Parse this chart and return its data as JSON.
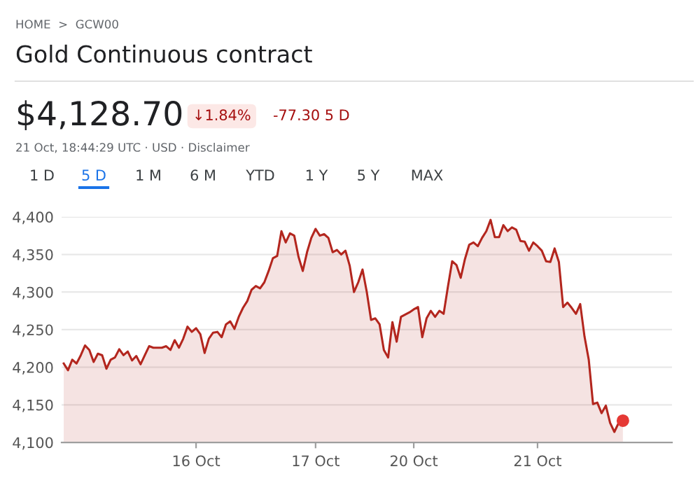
{
  "chart_data": {
    "type": "area",
    "title": "Gold Continuous contract",
    "annotations": [
      "HOME  >  GCW00",
      "$4,128.70",
      "↓1.84%",
      "-77.30 5 D",
      "21 Oct, 18:44:29 UTC · USD · Disclaimer",
      "1 D",
      "5 D",
      "1 M",
      "6 M",
      "YTD",
      "1 Y",
      "5 Y",
      "MAX"
    ],
    "categories": [
      null,
      null,
      null,
      null,
      null,
      null,
      null,
      null,
      null,
      null,
      null,
      null,
      null,
      null,
      null,
      null,
      null,
      null,
      null,
      null,
      null,
      null,
      null,
      null,
      null,
      null,
      null,
      null,
      null,
      null,
      null,
      "16 Oct",
      null,
      null,
      null,
      null,
      null,
      null,
      null,
      null,
      null,
      null,
      null,
      null,
      null,
      null,
      null,
      null,
      null,
      null,
      null,
      null,
      null,
      null,
      null,
      null,
      null,
      null,
      null,
      "17 Oct",
      null,
      null,
      null,
      null,
      null,
      null,
      null,
      null,
      null,
      null,
      null,
      null,
      null,
      null,
      null,
      null,
      null,
      null,
      null,
      null,
      null,
      null,
      "20 Oct",
      null,
      null,
      null,
      null,
      null,
      null,
      null,
      null,
      null,
      null,
      null,
      null,
      null,
      null,
      null,
      null,
      null,
      null,
      null,
      null,
      null,
      null,
      null,
      null,
      null,
      null,
      null,
      null,
      "21 Oct",
      null,
      null,
      null,
      null,
      null,
      null,
      null,
      null,
      null,
      null,
      null,
      null,
      null,
      null,
      null,
      null,
      null,
      null,
      null,
      null,
      null,
      null,
      null,
      null,
      null,
      null,
      null,
      null,
      null,
      null,
      null
    ],
    "ylim": [
      4100,
      4400
    ],
    "yticks": [
      {
        "value": 4100,
        "label": "4,100"
      },
      {
        "value": 4150,
        "label": "4,150"
      },
      {
        "value": 4200,
        "label": "4,200"
      },
      {
        "value": 4250,
        "label": "4,250"
      },
      {
        "value": 4300,
        "label": "4,300"
      },
      {
        "value": 4350,
        "label": "4,350"
      },
      {
        "value": 4400,
        "label": "4,400"
      }
    ],
    "grid": "y",
    "legend": false,
    "series": [
      {
        "color": "#b3261e",
        "values": [
          4205,
          4196,
          4210,
          4205,
          4216,
          4229,
          4223,
          4207,
          4218,
          4216,
          4198,
          4210,
          4213,
          4224,
          4216,
          4221,
          4209,
          4215,
          4204,
          4216,
          4228,
          4226,
          4226,
          4226,
          4228,
          4223,
          4236,
          4226,
          4238,
          4254,
          4247,
          4252,
          4244,
          4219,
          4238,
          4246,
          4247,
          4240,
          4257,
          4261,
          4251,
          4267,
          4279,
          4288,
          4303,
          4308,
          4305,
          4313,
          4328,
          4345,
          4348,
          4381,
          4366,
          4378,
          4375,
          4347,
          4328,
          4353,
          4372,
          4384,
          4375,
          4377,
          4372,
          4353,
          4356,
          4350,
          4355,
          4335,
          4300,
          4313,
          4330,
          4300,
          4263,
          4265,
          4257,
          4223,
          4213,
          4260,
          4234,
          4267,
          4270,
          4273,
          4277,
          4280,
          4240,
          4265,
          4275,
          4267,
          4275,
          4271,
          4307,
          4341,
          4336,
          4319,
          4344,
          4363,
          4366,
          4361,
          4372,
          4381,
          4396,
          4373,
          4373,
          4389,
          4381,
          4386,
          4383,
          4368,
          4367,
          4355,
          4366,
          4361,
          4355,
          4341,
          4340,
          4358,
          4340,
          4280,
          4286,
          4279,
          4271,
          4284,
          4241,
          4210,
          4151,
          4153,
          4139,
          4149,
          4126,
          4114,
          4126,
          4129,
          null,
          null,
          null,
          null,
          null,
          null,
          null,
          null,
          null,
          null,
          null
        ]
      },
      {
        "type": "scatter",
        "color": "#e53935",
        "marker": "circle",
        "values": [
          null,
          null,
          null,
          null,
          null,
          null,
          null,
          null,
          null,
          null,
          null,
          null,
          null,
          null,
          null,
          null,
          null,
          null,
          null,
          null,
          null,
          null,
          null,
          null,
          null,
          null,
          null,
          null,
          null,
          null,
          null,
          null,
          null,
          null,
          null,
          null,
          null,
          null,
          null,
          null,
          null,
          null,
          null,
          null,
          null,
          null,
          null,
          null,
          null,
          null,
          null,
          null,
          null,
          null,
          null,
          null,
          null,
          null,
          null,
          null,
          null,
          null,
          null,
          null,
          null,
          null,
          null,
          null,
          null,
          null,
          null,
          null,
          null,
          null,
          null,
          null,
          null,
          null,
          null,
          null,
          null,
          null,
          null,
          null,
          null,
          null,
          null,
          null,
          null,
          null,
          null,
          null,
          null,
          null,
          null,
          null,
          null,
          null,
          null,
          null,
          null,
          null,
          null,
          null,
          null,
          null,
          null,
          null,
          null,
          null,
          null,
          null,
          null,
          null,
          null,
          null,
          null,
          null,
          null,
          null,
          null,
          null,
          null,
          null,
          null,
          null,
          null,
          null,
          null,
          null,
          null,
          4129,
          null,
          null,
          null,
          null,
          null,
          null,
          null,
          null,
          null,
          null,
          null
        ]
      }
    ]
  }
}
